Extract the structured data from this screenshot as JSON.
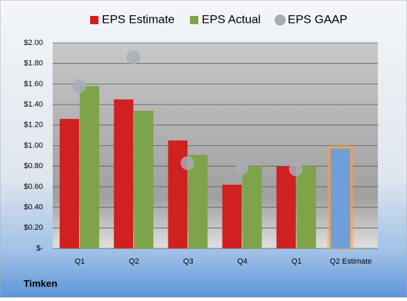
{
  "chart_data": {
    "type": "bar",
    "company": "Timken",
    "categories": [
      "Q1",
      "Q2",
      "Q3",
      "Q4",
      "Q1",
      "Q2 Estimate"
    ],
    "series": [
      {
        "name": "EPS Estimate",
        "color": "#d02020",
        "colors": [
          "#d02020",
          "#d02020",
          "#d02020",
          "#d02020",
          "#d02020",
          "#6f9fd8"
        ],
        "values": [
          1.26,
          1.45,
          1.05,
          0.62,
          0.8,
          0.97
        ]
      },
      {
        "name": "EPS Actual",
        "color": "#7fa34a",
        "values": [
          1.58,
          1.34,
          0.91,
          0.8,
          0.8,
          null
        ]
      },
      {
        "name": "EPS GAAP",
        "type": "scatter",
        "color": "#a8aeb8",
        "values": [
          1.58,
          1.86,
          0.83,
          0.78,
          0.77,
          null
        ]
      }
    ],
    "ylim": [
      0,
      2
    ],
    "yticks": [
      {
        "value": 0,
        "label": "$-"
      },
      {
        "value": 0.2,
        "label": "$0.20"
      },
      {
        "value": 0.4,
        "label": "$0.40"
      },
      {
        "value": 0.6,
        "label": "$0.60"
      },
      {
        "value": 0.8,
        "label": "$0.80"
      },
      {
        "value": 1.0,
        "label": "$1.00"
      },
      {
        "value": 1.2,
        "label": "$1.20"
      },
      {
        "value": 1.4,
        "label": "$1.40"
      },
      {
        "value": 1.6,
        "label": "$1.60"
      },
      {
        "value": 1.8,
        "label": "$1.80"
      },
      {
        "value": 2.0,
        "label": "$2.00"
      }
    ],
    "grid": true
  }
}
